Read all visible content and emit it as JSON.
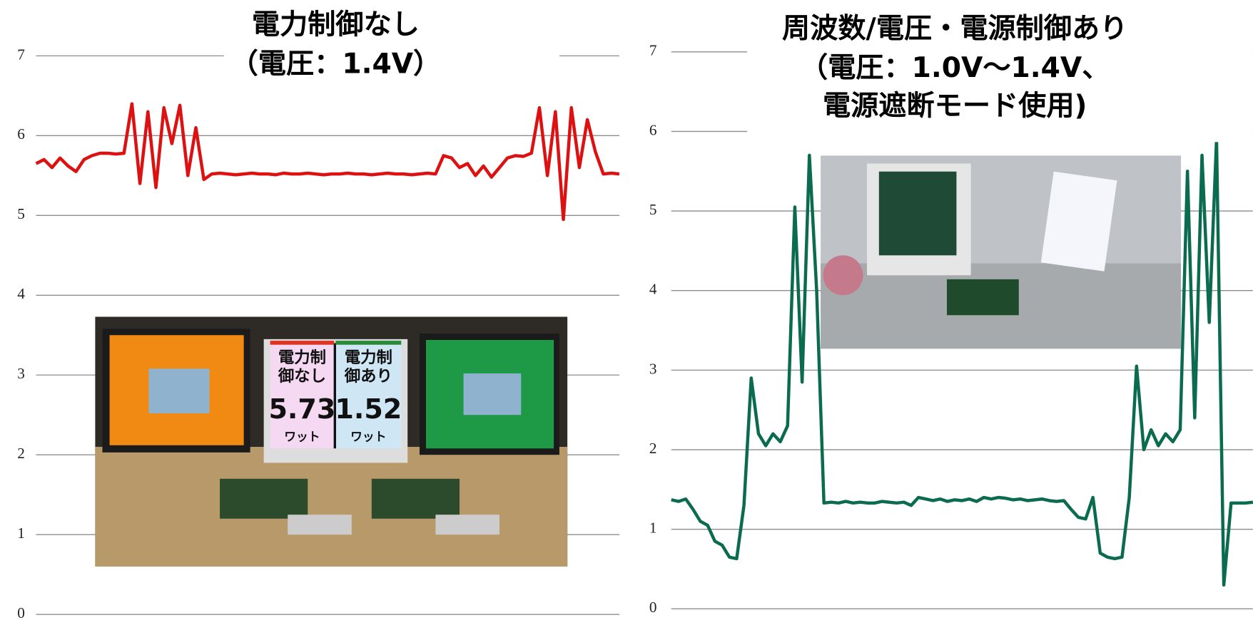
{
  "chart_data": [
    {
      "type": "line",
      "title": [
        "電力制御なし",
        "（電圧：1.4V）"
      ],
      "color": "#dd1111",
      "ylim": [
        0,
        7
      ],
      "yticks": [
        0,
        1,
        2,
        3,
        4,
        5,
        6,
        7
      ],
      "grid": true,
      "values": [
        5.65,
        5.7,
        5.6,
        5.72,
        5.62,
        5.55,
        5.7,
        5.75,
        5.78,
        5.78,
        5.77,
        5.78,
        6.4,
        5.4,
        6.3,
        5.35,
        6.35,
        5.9,
        6.38,
        5.5,
        6.1,
        5.45,
        5.52,
        5.53,
        5.52,
        5.51,
        5.52,
        5.53,
        5.52,
        5.52,
        5.51,
        5.53,
        5.52,
        5.52,
        5.53,
        5.52,
        5.51,
        5.52,
        5.52,
        5.53,
        5.52,
        5.52,
        5.51,
        5.52,
        5.53,
        5.52,
        5.52,
        5.51,
        5.52,
        5.53,
        5.52,
        5.75,
        5.72,
        5.6,
        5.65,
        5.5,
        5.62,
        5.48,
        5.6,
        5.72,
        5.75,
        5.74,
        5.78,
        6.35,
        5.5,
        6.3,
        4.95,
        6.35,
        5.6,
        6.2,
        5.8,
        5.52,
        5.53,
        5.52
      ],
      "annotations": [
        "電力制",
        "御なし",
        "5.73",
        "ワット",
        "電力制",
        "御あり",
        "1.52",
        "ワット"
      ]
    },
    {
      "type": "line",
      "title": [
        "周波数/電圧・電源制御あり",
        "（電圧：1.0V～1.4V、",
        "電源遮断モード使用)"
      ],
      "color": "#0a6b4f",
      "ylim": [
        0,
        7
      ],
      "yticks": [
        0,
        1,
        2,
        3,
        4,
        5,
        6,
        7
      ],
      "grid": true,
      "values": [
        1.37,
        1.35,
        1.38,
        1.25,
        1.1,
        1.05,
        0.85,
        0.8,
        0.65,
        0.63,
        1.3,
        2.9,
        2.2,
        2.05,
        2.2,
        2.1,
        2.3,
        5.05,
        2.85,
        5.7,
        4.0,
        1.33,
        1.34,
        1.33,
        1.35,
        1.33,
        1.34,
        1.33,
        1.33,
        1.35,
        1.34,
        1.33,
        1.34,
        1.3,
        1.4,
        1.38,
        1.36,
        1.38,
        1.35,
        1.37,
        1.36,
        1.38,
        1.35,
        1.4,
        1.38,
        1.4,
        1.39,
        1.37,
        1.38,
        1.36,
        1.37,
        1.38,
        1.36,
        1.35,
        1.36,
        1.25,
        1.15,
        1.13,
        1.4,
        0.7,
        0.65,
        0.63,
        0.65,
        1.4,
        3.05,
        2.0,
        2.25,
        2.05,
        2.2,
        2.1,
        2.25,
        5.5,
        2.4,
        5.7,
        3.6,
        5.9,
        0.3,
        1.33,
        1.33,
        1.33,
        1.34
      ]
    }
  ]
}
